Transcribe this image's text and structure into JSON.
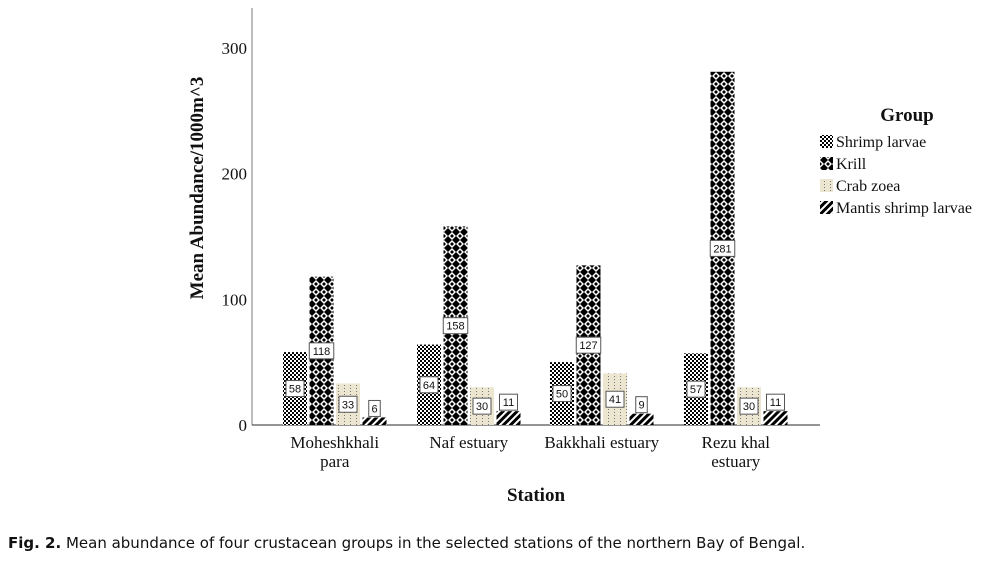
{
  "chart_data": {
    "type": "bar",
    "title": "",
    "xlabel": "Station",
    "ylabel": "Mean Abundance/1000m^3",
    "ylim": [
      0,
      330
    ],
    "yticks": [
      0,
      100,
      200,
      300
    ],
    "grid": false,
    "categories": [
      [
        "Moheshkhali",
        "para"
      ],
      [
        "Naf estuary"
      ],
      [
        "Bakkhali estuary"
      ],
      [
        "Rezu khal",
        "estuary"
      ]
    ],
    "legend": {
      "title": "Group",
      "placement": "right"
    },
    "series": [
      {
        "name": "Shrimp larvae",
        "pattern": "fine-check",
        "color": "#000000",
        "values": [
          58,
          64,
          50,
          57
        ]
      },
      {
        "name": "Krill",
        "pattern": "coarse-check",
        "color": "#000000",
        "values": [
          118,
          158,
          127,
          281
        ]
      },
      {
        "name": "Crab zoea",
        "pattern": "dots",
        "color": "#e9e2cc",
        "values": [
          33,
          30,
          41,
          30
        ]
      },
      {
        "name": "Mantis shrimp larvae",
        "pattern": "diagonal",
        "color": "#000000",
        "values": [
          6,
          11,
          9,
          11
        ]
      }
    ]
  },
  "caption": {
    "label": "Fig. 2.",
    "text": " Mean abundance of four crustacean groups in the selected stations of the northern Bay of Bengal."
  }
}
